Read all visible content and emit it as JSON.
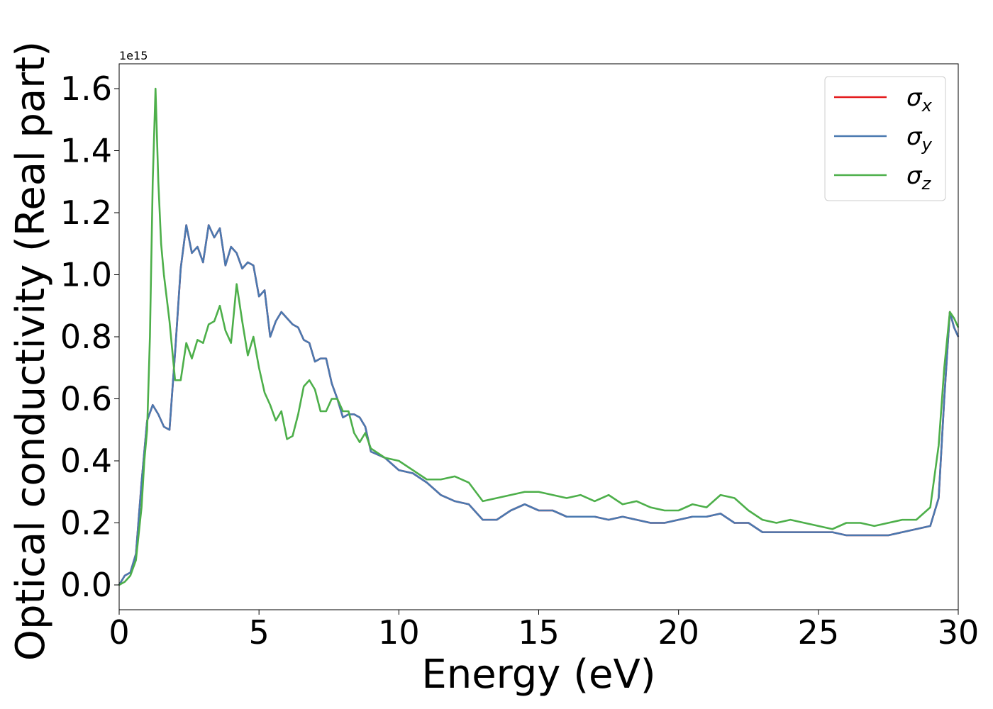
{
  "chart_data": {
    "type": "line",
    "xlabel": "Energy (eV)",
    "ylabel": "Optical conductivity (Real part)",
    "offset_text": "1e15",
    "xlim": [
      0,
      30
    ],
    "ylim": [
      -0.08,
      1.68
    ],
    "xticks": [
      0,
      5,
      10,
      15,
      20,
      25,
      30
    ],
    "xtick_labels": [
      "0",
      "5",
      "10",
      "15",
      "20",
      "25",
      "30"
    ],
    "yticks": [
      0.0,
      0.2,
      0.4,
      0.6,
      0.8,
      1.0,
      1.2,
      1.4,
      1.6
    ],
    "ytick_labels": [
      "0.0",
      "0.2",
      "0.4",
      "0.6",
      "0.8",
      "1.0",
      "1.2",
      "1.4",
      "1.6"
    ],
    "grid": false,
    "legend_position": "top-right",
    "series": [
      {
        "name": "σ_x",
        "legend_base": "σ",
        "legend_sub": "x",
        "color": "#e41a1c",
        "x": [
          0,
          0.2,
          0.4,
          0.6,
          0.8,
          1.0,
          1.2,
          1.4,
          1.6,
          1.8,
          2.0,
          2.2,
          2.4,
          2.6,
          2.8,
          3.0,
          3.2,
          3.4,
          3.6,
          3.8,
          4.0,
          4.2,
          4.4,
          4.6,
          4.8,
          5.0,
          5.2,
          5.4,
          5.6,
          5.8,
          6.0,
          6.2,
          6.4,
          6.6,
          6.8,
          7.0,
          7.2,
          7.4,
          7.6,
          7.8,
          8.0,
          8.2,
          8.4,
          8.6,
          8.8,
          9.0,
          9.5,
          10.0,
          10.5,
          11.0,
          11.5,
          12.0,
          12.5,
          13.0,
          13.5,
          14.0,
          14.5,
          15.0,
          15.5,
          16.0,
          16.5,
          17.0,
          17.5,
          18.0,
          18.5,
          19.0,
          19.5,
          20.0,
          20.5,
          21.0,
          21.5,
          22.0,
          22.5,
          23.0,
          23.5,
          24.0,
          24.5,
          25.0,
          25.5,
          26.0,
          26.5,
          27.0,
          27.5,
          28.0,
          28.5,
          29.0,
          29.3,
          29.5,
          29.7,
          29.85,
          30.0
        ],
        "y": [
          0.0,
          0.03,
          0.04,
          0.1,
          0.33,
          0.53,
          0.58,
          0.55,
          0.51,
          0.5,
          0.75,
          1.02,
          1.16,
          1.07,
          1.09,
          1.04,
          1.16,
          1.12,
          1.15,
          1.03,
          1.09,
          1.07,
          1.02,
          1.04,
          1.03,
          0.93,
          0.95,
          0.8,
          0.85,
          0.88,
          0.86,
          0.84,
          0.83,
          0.79,
          0.78,
          0.72,
          0.73,
          0.73,
          0.65,
          0.6,
          0.54,
          0.55,
          0.55,
          0.54,
          0.51,
          0.43,
          0.41,
          0.37,
          0.36,
          0.33,
          0.29,
          0.27,
          0.26,
          0.21,
          0.21,
          0.24,
          0.26,
          0.24,
          0.24,
          0.22,
          0.22,
          0.22,
          0.21,
          0.22,
          0.21,
          0.2,
          0.2,
          0.21,
          0.22,
          0.22,
          0.23,
          0.2,
          0.2,
          0.17,
          0.17,
          0.17,
          0.17,
          0.17,
          0.17,
          0.16,
          0.16,
          0.16,
          0.16,
          0.17,
          0.18,
          0.19,
          0.28,
          0.6,
          0.88,
          0.83,
          0.8
        ]
      },
      {
        "name": "σ_y",
        "legend_base": "σ",
        "legend_sub": "y",
        "color": "#4a79b0",
        "x": [
          0,
          0.2,
          0.4,
          0.6,
          0.8,
          1.0,
          1.2,
          1.4,
          1.6,
          1.8,
          2.0,
          2.2,
          2.4,
          2.6,
          2.8,
          3.0,
          3.2,
          3.4,
          3.6,
          3.8,
          4.0,
          4.2,
          4.4,
          4.6,
          4.8,
          5.0,
          5.2,
          5.4,
          5.6,
          5.8,
          6.0,
          6.2,
          6.4,
          6.6,
          6.8,
          7.0,
          7.2,
          7.4,
          7.6,
          7.8,
          8.0,
          8.2,
          8.4,
          8.6,
          8.8,
          9.0,
          9.5,
          10.0,
          10.5,
          11.0,
          11.5,
          12.0,
          12.5,
          13.0,
          13.5,
          14.0,
          14.5,
          15.0,
          15.5,
          16.0,
          16.5,
          17.0,
          17.5,
          18.0,
          18.5,
          19.0,
          19.5,
          20.0,
          20.5,
          21.0,
          21.5,
          22.0,
          22.5,
          23.0,
          23.5,
          24.0,
          24.5,
          25.0,
          25.5,
          26.0,
          26.5,
          27.0,
          27.5,
          28.0,
          28.5,
          29.0,
          29.3,
          29.5,
          29.7,
          29.85,
          30.0
        ],
        "y": [
          0.0,
          0.03,
          0.04,
          0.1,
          0.33,
          0.53,
          0.58,
          0.55,
          0.51,
          0.5,
          0.75,
          1.02,
          1.16,
          1.07,
          1.09,
          1.04,
          1.16,
          1.12,
          1.15,
          1.03,
          1.09,
          1.07,
          1.02,
          1.04,
          1.03,
          0.93,
          0.95,
          0.8,
          0.85,
          0.88,
          0.86,
          0.84,
          0.83,
          0.79,
          0.78,
          0.72,
          0.73,
          0.73,
          0.65,
          0.6,
          0.54,
          0.55,
          0.55,
          0.54,
          0.51,
          0.43,
          0.41,
          0.37,
          0.36,
          0.33,
          0.29,
          0.27,
          0.26,
          0.21,
          0.21,
          0.24,
          0.26,
          0.24,
          0.24,
          0.22,
          0.22,
          0.22,
          0.21,
          0.22,
          0.21,
          0.2,
          0.2,
          0.21,
          0.22,
          0.22,
          0.23,
          0.2,
          0.2,
          0.17,
          0.17,
          0.17,
          0.17,
          0.17,
          0.17,
          0.16,
          0.16,
          0.16,
          0.16,
          0.17,
          0.18,
          0.19,
          0.28,
          0.6,
          0.88,
          0.83,
          0.8
        ]
      },
      {
        "name": "σ_z",
        "legend_base": "σ",
        "legend_sub": "z",
        "color": "#4daf4a",
        "x": [
          0,
          0.2,
          0.4,
          0.6,
          0.8,
          0.9,
          1.0,
          1.1,
          1.2,
          1.3,
          1.4,
          1.5,
          1.6,
          1.8,
          2.0,
          2.2,
          2.4,
          2.6,
          2.8,
          3.0,
          3.2,
          3.4,
          3.6,
          3.8,
          4.0,
          4.2,
          4.4,
          4.6,
          4.8,
          5.0,
          5.2,
          5.4,
          5.6,
          5.8,
          6.0,
          6.2,
          6.4,
          6.6,
          6.8,
          7.0,
          7.2,
          7.4,
          7.6,
          7.8,
          8.0,
          8.2,
          8.4,
          8.6,
          8.8,
          9.0,
          9.5,
          10.0,
          10.5,
          11.0,
          11.5,
          12.0,
          12.5,
          13.0,
          13.5,
          14.0,
          14.5,
          15.0,
          15.5,
          16.0,
          16.5,
          17.0,
          17.5,
          18.0,
          18.5,
          19.0,
          19.5,
          20.0,
          20.5,
          21.0,
          21.5,
          22.0,
          22.5,
          23.0,
          23.5,
          24.0,
          24.5,
          25.0,
          25.5,
          26.0,
          26.5,
          27.0,
          27.5,
          28.0,
          28.5,
          29.0,
          29.3,
          29.5,
          29.7,
          29.85,
          30.0
        ],
        "y": [
          0.0,
          0.01,
          0.03,
          0.08,
          0.25,
          0.4,
          0.5,
          0.8,
          1.3,
          1.6,
          1.3,
          1.1,
          1.0,
          0.85,
          0.66,
          0.66,
          0.78,
          0.73,
          0.79,
          0.78,
          0.84,
          0.85,
          0.9,
          0.82,
          0.78,
          0.97,
          0.85,
          0.74,
          0.8,
          0.7,
          0.62,
          0.58,
          0.53,
          0.56,
          0.47,
          0.48,
          0.55,
          0.64,
          0.66,
          0.63,
          0.56,
          0.56,
          0.6,
          0.6,
          0.56,
          0.56,
          0.49,
          0.46,
          0.49,
          0.44,
          0.41,
          0.4,
          0.37,
          0.34,
          0.34,
          0.35,
          0.33,
          0.27,
          0.28,
          0.29,
          0.3,
          0.3,
          0.29,
          0.28,
          0.29,
          0.27,
          0.29,
          0.26,
          0.27,
          0.25,
          0.24,
          0.24,
          0.26,
          0.25,
          0.29,
          0.28,
          0.24,
          0.21,
          0.2,
          0.21,
          0.2,
          0.19,
          0.18,
          0.2,
          0.2,
          0.19,
          0.2,
          0.21,
          0.21,
          0.25,
          0.45,
          0.7,
          0.88,
          0.86,
          0.83
        ]
      }
    ]
  }
}
